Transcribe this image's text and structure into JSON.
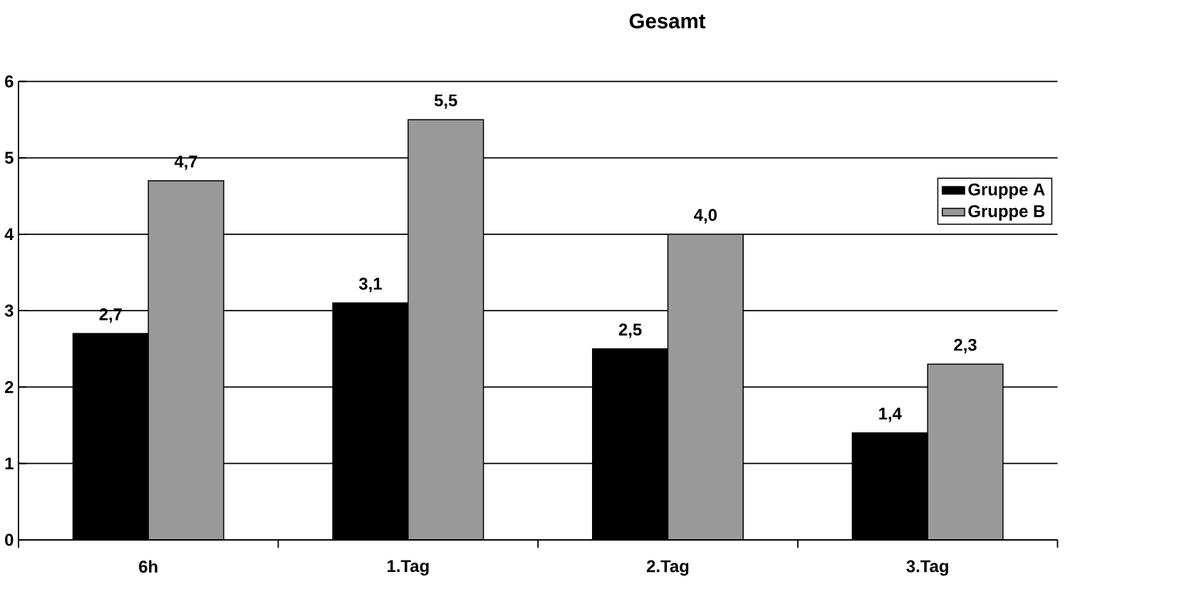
{
  "chart_data": {
    "type": "bar",
    "title": "Gesamt",
    "categories": [
      "6h",
      "1.Tag",
      "2.Tag",
      "3.Tag"
    ],
    "series": [
      {
        "name": "Gruppe A",
        "color": "#000000",
        "values": [
          2.7,
          3.1,
          2.5,
          1.4
        ],
        "value_labels": [
          "2,7",
          "3,1",
          "2,5",
          "1,4"
        ]
      },
      {
        "name": "Gruppe B",
        "color": "#999999",
        "values": [
          4.7,
          5.5,
          4.0,
          2.3
        ],
        "value_labels": [
          "4,7",
          "5,5",
          "4,0",
          "2,3"
        ]
      }
    ],
    "ylim": [
      0,
      6
    ],
    "yticks": [
      0,
      1,
      2,
      3,
      4,
      5,
      6
    ],
    "grid": "y",
    "legend": "top right"
  }
}
